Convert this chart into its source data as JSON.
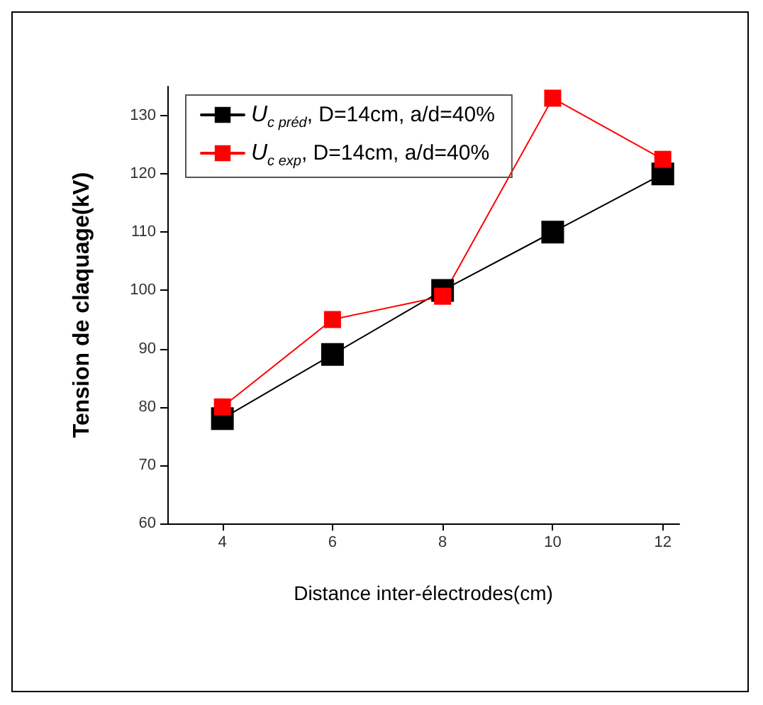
{
  "chart_data": {
    "type": "line",
    "xlabel": "Distance inter-électrodes(cm)",
    "ylabel": "Tension de claquage(kV)",
    "x": [
      4,
      6,
      8,
      10,
      12
    ],
    "series": [
      {
        "name": "U$_{c préd}$, D=14cm, a/d=40%",
        "color": "#000000",
        "values": [
          78,
          89,
          100,
          110,
          120
        ]
      },
      {
        "name": "U$_{c exp}$, D=14cm, a/d=40%",
        "color": "#ff0000",
        "values": [
          80,
          95,
          99,
          133,
          122.5
        ]
      }
    ],
    "xlim": [
      3,
      12.3
    ],
    "xticks": [
      4,
      6,
      8,
      10,
      12
    ],
    "ylim": [
      60,
      135
    ],
    "yticks": [
      60,
      70,
      80,
      90,
      100,
      110,
      120,
      130
    ],
    "grid": false,
    "legend": "top left",
    "marker": "square",
    "line_style": "solid"
  }
}
